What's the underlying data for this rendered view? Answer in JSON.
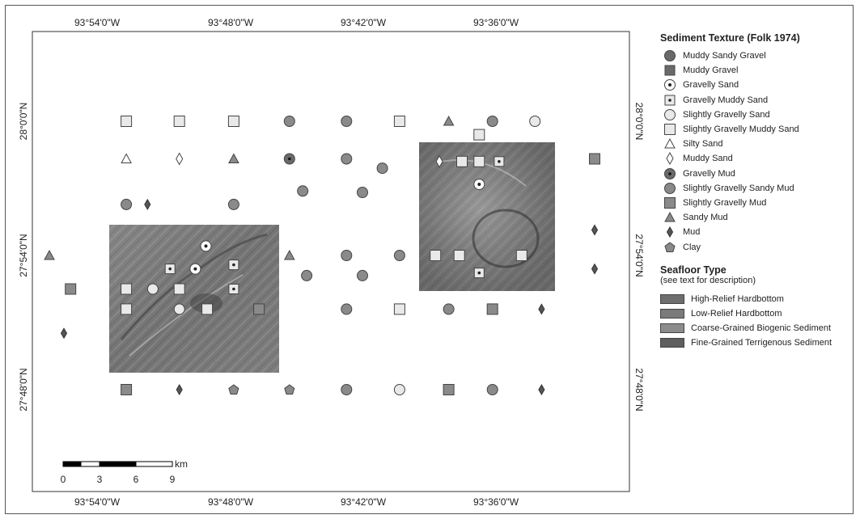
{
  "map": {
    "axis_top_labels": [
      "93°54'0\"W",
      "93°48'0\"W",
      "93°42'0\"W",
      "93°36'0\"W"
    ],
    "axis_bottom_labels": [
      "93°54'0\"W",
      "93°48'0\"W",
      "93°42'0\"W",
      "93°36'0\"W"
    ],
    "axis_left_labels": [
      "28°0'0\"N",
      "27°54'0\"N",
      "27°48'0\"N"
    ],
    "axis_right_labels": [
      "28°0'0\"N",
      "27°54'0\"N",
      "27°48'0\"N"
    ]
  },
  "scale_bar": {
    "unit": "km",
    "ticks": [
      "0",
      "3",
      "6",
      "9"
    ]
  },
  "legend": {
    "texture_title": "Sediment Texture (Folk 1974)",
    "texture_items": [
      {
        "key": "muddy-sandy-gravel",
        "label": "Muddy Sandy Gravel"
      },
      {
        "key": "muddy-gravel",
        "label": "Muddy Gravel"
      },
      {
        "key": "gravelly-sand",
        "label": "Gravelly Sand"
      },
      {
        "key": "gravelly-muddy-sand",
        "label": "Gravelly Muddy Sand"
      },
      {
        "key": "slightly-gravelly-sand",
        "label": "Slightly Gravelly Sand"
      },
      {
        "key": "slightly-gravelly-muddy-sand",
        "label": "Slightly Gravelly Muddy Sand"
      },
      {
        "key": "silty-sand",
        "label": "Silty Sand"
      },
      {
        "key": "muddy-sand",
        "label": "Muddy Sand"
      },
      {
        "key": "gravelly-mud",
        "label": "Gravelly Mud"
      },
      {
        "key": "slightly-gravelly-sandy-mud",
        "label": "Slightly Gravelly Sandy Mud"
      },
      {
        "key": "slightly-gravelly-mud",
        "label": "Slightly Gravelly Mud"
      },
      {
        "key": "sandy-mud",
        "label": "Sandy Mud"
      },
      {
        "key": "mud",
        "label": "Mud"
      },
      {
        "key": "clay",
        "label": "Clay"
      }
    ],
    "seafloor_title": "Seafloor Type",
    "seafloor_subtitle": "(see text for description)",
    "seafloor_items": [
      {
        "label": "High-Relief Hardbottom",
        "color": "#6e6e6e"
      },
      {
        "label": "Low-Relief Hardbottom",
        "color": "#7a7a7a"
      },
      {
        "label": "Coarse-Grained Biogenic Sediment",
        "color": "#8c8c8c"
      },
      {
        "label": "Fine-Grained Terrigenous Sediment",
        "color": "#5e5e5e"
      }
    ]
  },
  "samples": [
    {
      "lon": -93.878,
      "lat": 28.0,
      "type": "slightly-gravelly-muddy-sand"
    },
    {
      "lon": -93.838,
      "lat": 28.0,
      "type": "slightly-gravelly-muddy-sand"
    },
    {
      "lon": -93.797,
      "lat": 28.0,
      "type": "slightly-gravelly-muddy-sand"
    },
    {
      "lon": -93.755,
      "lat": 28.0,
      "type": "slightly-gravelly-sandy-mud"
    },
    {
      "lon": -93.712,
      "lat": 28.0,
      "type": "slightly-gravelly-sandy-mud"
    },
    {
      "lon": -93.672,
      "lat": 28.0,
      "type": "slightly-gravelly-muddy-sand"
    },
    {
      "lon": -93.635,
      "lat": 28.0,
      "type": "sandy-mud"
    },
    {
      "lon": -93.602,
      "lat": 28.0,
      "type": "slightly-gravelly-sandy-mud"
    },
    {
      "lon": -93.57,
      "lat": 28.0,
      "type": "slightly-gravelly-sand"
    },
    {
      "lon": -93.878,
      "lat": 27.972,
      "type": "silty-sand"
    },
    {
      "lon": -93.838,
      "lat": 27.972,
      "type": "muddy-sand"
    },
    {
      "lon": -93.797,
      "lat": 27.972,
      "type": "sandy-mud"
    },
    {
      "lon": -93.755,
      "lat": 27.972,
      "type": "gravelly-mud"
    },
    {
      "lon": -93.712,
      "lat": 27.972,
      "type": "slightly-gravelly-sandy-mud"
    },
    {
      "lon": -93.685,
      "lat": 27.965,
      "type": "slightly-gravelly-sandy-mud"
    },
    {
      "lon": -93.745,
      "lat": 27.948,
      "type": "slightly-gravelly-sandy-mud"
    },
    {
      "lon": -93.7,
      "lat": 27.947,
      "type": "slightly-gravelly-sandy-mud"
    },
    {
      "lon": -93.525,
      "lat": 27.972,
      "type": "slightly-gravelly-mud"
    },
    {
      "lon": -93.642,
      "lat": 27.97,
      "type": "muddy-sand"
    },
    {
      "lon": -93.625,
      "lat": 27.97,
      "type": "slightly-gravelly-muddy-sand"
    },
    {
      "lon": -93.612,
      "lat": 27.97,
      "type": "slightly-gravelly-muddy-sand"
    },
    {
      "lon": -93.597,
      "lat": 27.97,
      "type": "gravelly-muddy-sand"
    },
    {
      "lon": -93.612,
      "lat": 27.99,
      "type": "slightly-gravelly-muddy-sand"
    },
    {
      "lon": -93.612,
      "lat": 27.953,
      "type": "gravelly-sand"
    },
    {
      "lon": -93.645,
      "lat": 27.9,
      "type": "slightly-gravelly-muddy-sand"
    },
    {
      "lon": -93.627,
      "lat": 27.9,
      "type": "slightly-gravelly-muddy-sand"
    },
    {
      "lon": -93.58,
      "lat": 27.9,
      "type": "slightly-gravelly-muddy-sand"
    },
    {
      "lon": -93.612,
      "lat": 27.887,
      "type": "gravelly-muddy-sand"
    },
    {
      "lon": -93.936,
      "lat": 27.9,
      "type": "sandy-mud"
    },
    {
      "lon": -93.755,
      "lat": 27.9,
      "type": "sandy-mud"
    },
    {
      "lon": -93.712,
      "lat": 27.9,
      "type": "slightly-gravelly-sandy-mud"
    },
    {
      "lon": -93.672,
      "lat": 27.9,
      "type": "slightly-gravelly-sandy-mud"
    },
    {
      "lon": -93.742,
      "lat": 27.885,
      "type": "slightly-gravelly-sandy-mud"
    },
    {
      "lon": -93.7,
      "lat": 27.885,
      "type": "slightly-gravelly-sandy-mud"
    },
    {
      "lon": -93.525,
      "lat": 27.919,
      "type": "mud"
    },
    {
      "lon": -93.525,
      "lat": 27.89,
      "type": "mud"
    },
    {
      "lon": -93.92,
      "lat": 27.875,
      "type": "slightly-gravelly-mud"
    },
    {
      "lon": -93.878,
      "lat": 27.938,
      "type": "slightly-gravelly-sandy-mud"
    },
    {
      "lon": -93.862,
      "lat": 27.938,
      "type": "mud"
    },
    {
      "lon": -93.797,
      "lat": 27.938,
      "type": "slightly-gravelly-sandy-mud"
    },
    {
      "lon": -93.818,
      "lat": 27.907,
      "type": "gravelly-sand"
    },
    {
      "lon": -93.845,
      "lat": 27.89,
      "type": "gravelly-muddy-sand"
    },
    {
      "lon": -93.826,
      "lat": 27.89,
      "type": "gravelly-sand"
    },
    {
      "lon": -93.797,
      "lat": 27.893,
      "type": "gravelly-muddy-sand"
    },
    {
      "lon": -93.878,
      "lat": 27.875,
      "type": "slightly-gravelly-muddy-sand"
    },
    {
      "lon": -93.858,
      "lat": 27.875,
      "type": "slightly-gravelly-sand"
    },
    {
      "lon": -93.838,
      "lat": 27.875,
      "type": "slightly-gravelly-muddy-sand"
    },
    {
      "lon": -93.797,
      "lat": 27.875,
      "type": "gravelly-muddy-sand"
    },
    {
      "lon": -93.878,
      "lat": 27.86,
      "type": "slightly-gravelly-muddy-sand"
    },
    {
      "lon": -93.838,
      "lat": 27.86,
      "type": "slightly-gravelly-sand"
    },
    {
      "lon": -93.817,
      "lat": 27.86,
      "type": "slightly-gravelly-muddy-sand"
    },
    {
      "lon": -93.778,
      "lat": 27.86,
      "type": "slightly-gravelly-mud"
    },
    {
      "lon": -93.712,
      "lat": 27.86,
      "type": "slightly-gravelly-sandy-mud"
    },
    {
      "lon": -93.672,
      "lat": 27.86,
      "type": "slightly-gravelly-muddy-sand"
    },
    {
      "lon": -93.635,
      "lat": 27.86,
      "type": "slightly-gravelly-sandy-mud"
    },
    {
      "lon": -93.602,
      "lat": 27.86,
      "type": "slightly-gravelly-mud"
    },
    {
      "lon": -93.565,
      "lat": 27.86,
      "type": "mud"
    },
    {
      "lon": -93.925,
      "lat": 27.842,
      "type": "mud"
    },
    {
      "lon": -93.878,
      "lat": 27.8,
      "type": "slightly-gravelly-mud"
    },
    {
      "lon": -93.838,
      "lat": 27.8,
      "type": "mud"
    },
    {
      "lon": -93.797,
      "lat": 27.8,
      "type": "clay"
    },
    {
      "lon": -93.755,
      "lat": 27.8,
      "type": "clay"
    },
    {
      "lon": -93.712,
      "lat": 27.8,
      "type": "slightly-gravelly-sandy-mud"
    },
    {
      "lon": -93.672,
      "lat": 27.8,
      "type": "slightly-gravelly-sand"
    },
    {
      "lon": -93.635,
      "lat": 27.8,
      "type": "slightly-gravelly-mud"
    },
    {
      "lon": -93.602,
      "lat": 27.8,
      "type": "slightly-gravelly-sandy-mud"
    },
    {
      "lon": -93.565,
      "lat": 27.8,
      "type": "mud"
    }
  ]
}
